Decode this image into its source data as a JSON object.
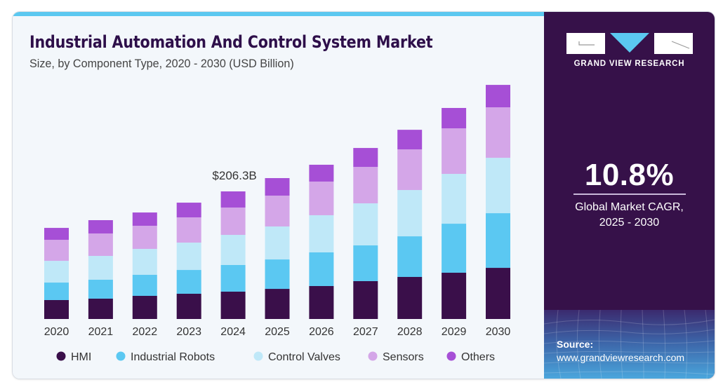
{
  "header": {
    "title": "Industrial Automation And Control System Market",
    "subtitle": "Size, by Component Type, 2020 - 2030 (USD Billion)"
  },
  "brand": {
    "logo_icon": "gvr-logo-icon",
    "name": "GRAND VIEW RESEARCH"
  },
  "cagr": {
    "value": "10.8%",
    "label_line1": "Global Market CAGR,",
    "label_line2": "2025 - 2030"
  },
  "source": {
    "label": "Source:",
    "url": "www.grandviewresearch.com"
  },
  "colors": {
    "accent_strip": "#5bc8f0",
    "panel": "#361149",
    "title": "#2e0f4a"
  },
  "chart_data": {
    "type": "bar",
    "stacked": true,
    "title": "Industrial Automation And Control System Market",
    "subtitle": "Size, by Component Type, 2020 - 2030 (USD Billion)",
    "xlabel": "",
    "ylabel": "",
    "ylim": [
      0,
      420
    ],
    "grid": false,
    "legend_position": "bottom",
    "categories": [
      "2020",
      "2021",
      "2022",
      "2023",
      "2024",
      "2025",
      "2026",
      "2027",
      "2028",
      "2029",
      "2030"
    ],
    "series": [
      {
        "name": "HMI",
        "color": "#3a0f4a",
        "values": [
          30.6,
          32.9,
          37.4,
          40.8,
          44.2,
          48.7,
          53.3,
          61.2,
          68.0,
          74.8,
          82.7
        ]
      },
      {
        "name": "Industrial Robots",
        "color": "#5bc8f2",
        "values": [
          28.3,
          30.6,
          34.0,
          38.5,
          43.1,
          47.6,
          54.4,
          57.8,
          65.7,
          79.3,
          88.4
        ]
      },
      {
        "name": "Control Valves",
        "color": "#bfe8f8",
        "values": [
          35.1,
          38.5,
          41.9,
          44.2,
          48.7,
          53.3,
          60.1,
          68.0,
          74.8,
          80.5,
          89.5
        ]
      },
      {
        "name": "Sensors",
        "color": "#d4a6e8",
        "values": [
          34.0,
          36.3,
          37.4,
          40.8,
          44.2,
          49.9,
          54.4,
          58.9,
          65.7,
          73.7,
          81.6
        ]
      },
      {
        "name": "Others",
        "color": "#a64fd6",
        "values": [
          19.3,
          21.5,
          21.5,
          23.8,
          26.1,
          28.3,
          27.2,
          30.6,
          31.7,
          32.9,
          36.3
        ]
      }
    ],
    "annotations": [
      {
        "category": "2024",
        "text": "$206.3B"
      }
    ]
  }
}
